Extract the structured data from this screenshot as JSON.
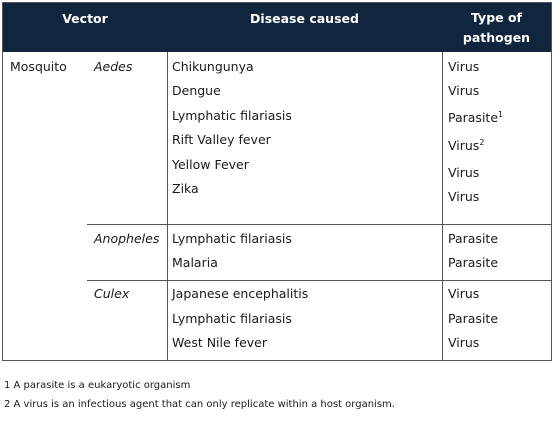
{
  "header": {
    "vector": "Vector",
    "disease": "Disease caused",
    "pathogen_line1": "Type of",
    "pathogen_line2": "pathogen"
  },
  "vector_name": "Mosquito",
  "groups": [
    {
      "genus": "Aedes",
      "rows": [
        {
          "disease": "Chikungunya",
          "pathogen": "Virus",
          "sup": ""
        },
        {
          "disease": "Dengue",
          "pathogen": "Virus",
          "sup": ""
        },
        {
          "disease": "Lymphatic filariasis",
          "pathogen": "Parasite",
          "sup": "1"
        },
        {
          "disease": "Rift Valley fever",
          "pathogen": "Virus",
          "sup": "2"
        },
        {
          "disease": "Yellow Fever",
          "pathogen": "Virus",
          "sup": ""
        },
        {
          "disease": "Zika",
          "pathogen": "Virus",
          "sup": ""
        }
      ]
    },
    {
      "genus": "Anopheles",
      "rows": [
        {
          "disease": "Lymphatic filariasis",
          "pathogen": "Parasite",
          "sup": ""
        },
        {
          "disease": "Malaria",
          "pathogen": "Parasite",
          "sup": ""
        }
      ]
    },
    {
      "genus": "Culex",
      "rows": [
        {
          "disease": "Japanese encephalitis",
          "pathogen": "Virus",
          "sup": ""
        },
        {
          "disease": "Lymphatic filariasis",
          "pathogen": "Parasite",
          "sup": ""
        },
        {
          "disease": "West Nile fever",
          "pathogen": "Virus",
          "sup": ""
        }
      ]
    }
  ],
  "footnotes": [
    "1 A parasite is a eukaryotic organism",
    "2 A virus is an infectious agent that can only replicate within a host organism."
  ]
}
